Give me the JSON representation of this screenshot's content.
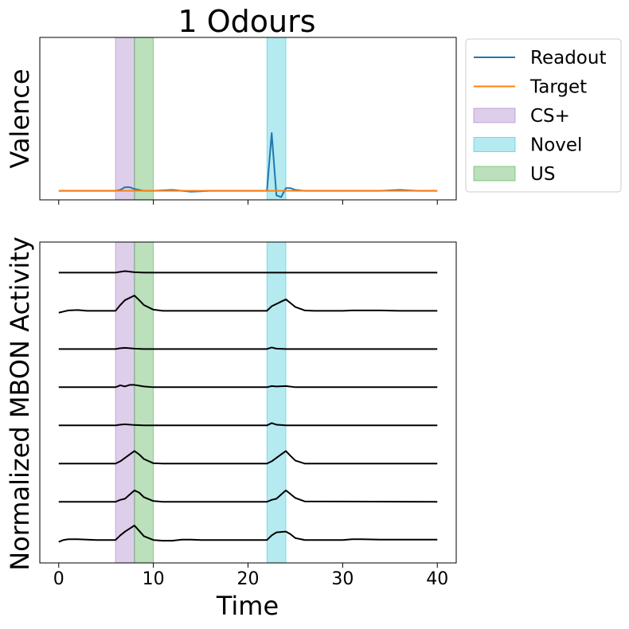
{
  "chart_data": [
    {
      "type": "line",
      "title": "1 Odours",
      "xlabel": "",
      "ylabel": "Valence",
      "xlim": [
        -2,
        42
      ],
      "ylim": [
        -0.1,
        1.7
      ],
      "yticks_visible": false,
      "xtick_labels_visible": false,
      "grid": false,
      "shaded_regions": [
        {
          "name": "CS+",
          "x": [
            6,
            8
          ],
          "color": "#9467bd"
        },
        {
          "name": "US",
          "x": [
            8,
            10
          ],
          "color": "#2ca02c"
        },
        {
          "name": "Novel",
          "x": [
            22,
            24
          ],
          "color": "#17becf"
        }
      ],
      "series": [
        {
          "name": "Readout",
          "color": "#1f77b4",
          "x": [
            0,
            2,
            4,
            6,
            6.5,
            7,
            7.5,
            8,
            9,
            10,
            12,
            14,
            16,
            18,
            20,
            22,
            22.5,
            23,
            23.5,
            24,
            24.5,
            25,
            26,
            28,
            30,
            32,
            34,
            36,
            38,
            40
          ],
          "values": [
            0,
            0,
            0,
            0,
            0.01,
            0.04,
            0.04,
            0.02,
            0.0,
            0.0,
            0.01,
            -0.01,
            0.0,
            0.0,
            0.0,
            0.0,
            0.64,
            -0.05,
            -0.07,
            0.03,
            0.03,
            0.01,
            0.0,
            0.0,
            0.0,
            0.0,
            0.0,
            0.01,
            0.0,
            0.0
          ]
        },
        {
          "name": "Target",
          "color": "#ff7f0e",
          "x": [
            0,
            40
          ],
          "values": [
            0,
            0
          ]
        }
      ]
    },
    {
      "type": "line",
      "xlabel": "Time",
      "ylabel": "Normalized MBON Activity",
      "xlim": [
        -2,
        42
      ],
      "ylim": [
        -0.6,
        7.8
      ],
      "xticks": [
        0,
        10,
        20,
        30,
        40
      ],
      "xtick_labels": [
        "0",
        "10",
        "20",
        "30",
        "40"
      ],
      "yticks_visible": false,
      "grid": false,
      "shaded_regions": [
        {
          "name": "CS+",
          "x": [
            6,
            8
          ],
          "color": "#9467bd"
        },
        {
          "name": "US",
          "x": [
            8,
            10
          ],
          "color": "#2ca02c"
        },
        {
          "name": "Novel",
          "x": [
            22,
            24
          ],
          "color": "#17becf"
        }
      ],
      "series": [
        {
          "color": "#000000",
          "offset": 7,
          "x": [
            0,
            6,
            6.5,
            7,
            8,
            9,
            10,
            20,
            22,
            23,
            24,
            26,
            40
          ],
          "values": [
            0,
            0,
            0.02,
            0.04,
            0.01,
            0,
            0,
            0,
            0,
            0.0,
            0,
            0,
            0
          ]
        },
        {
          "color": "#000000",
          "offset": 6,
          "x": [
            0,
            0.5,
            1,
            2,
            3,
            4,
            5,
            6,
            6.5,
            7,
            8,
            8.5,
            9,
            10,
            11,
            12,
            14,
            16,
            18,
            20,
            22,
            22.5,
            23,
            24,
            24.5,
            25,
            26,
            27,
            28,
            29,
            30,
            31,
            32,
            34,
            36,
            38,
            40
          ],
          "values": [
            -0.05,
            -0.02,
            0.01,
            0.02,
            0.0,
            0.0,
            0.0,
            0.0,
            0.15,
            0.28,
            0.4,
            0.28,
            0.15,
            0.03,
            0.0,
            0.0,
            0.0,
            0.0,
            0.0,
            0.0,
            0.0,
            0.12,
            0.18,
            0.3,
            0.2,
            0.1,
            0.01,
            0.0,
            0.0,
            0.0,
            0.0,
            0.01,
            0.01,
            0.01,
            0.0,
            0.0,
            0.0
          ]
        },
        {
          "color": "#000000",
          "offset": 5,
          "x": [
            0,
            6,
            6.5,
            7,
            8,
            9,
            10,
            20,
            22,
            22.5,
            23,
            24,
            40
          ],
          "values": [
            0,
            0,
            0.02,
            0.03,
            0.01,
            0,
            0,
            0,
            0,
            0.04,
            0.01,
            0,
            0
          ]
        },
        {
          "color": "#000000",
          "offset": 4,
          "x": [
            0,
            6,
            6.5,
            7,
            7.5,
            8,
            9,
            10,
            20,
            22,
            22.5,
            23,
            24,
            25,
            40
          ],
          "values": [
            0,
            0,
            0.05,
            0.02,
            0.06,
            0.06,
            0.02,
            0,
            0,
            0,
            0.03,
            0.02,
            0.03,
            0,
            0
          ]
        },
        {
          "color": "#000000",
          "offset": 3,
          "x": [
            0,
            6,
            6.5,
            7,
            8,
            9,
            10,
            20,
            22,
            22.5,
            23,
            24,
            40
          ],
          "values": [
            0,
            0,
            0.02,
            0.03,
            0.01,
            0,
            0,
            0,
            0,
            0.06,
            0.02,
            0,
            0
          ]
        },
        {
          "color": "#000000",
          "offset": 2,
          "x": [
            0,
            6,
            6.5,
            7,
            8,
            8.5,
            9,
            10,
            11,
            12,
            20,
            22,
            22.5,
            23,
            24,
            24.5,
            25,
            26,
            40
          ],
          "values": [
            0,
            0,
            0.06,
            0.15,
            0.33,
            0.24,
            0.12,
            0.01,
            0.0,
            0.0,
            0,
            0,
            0.06,
            0.15,
            0.33,
            0.2,
            0.08,
            0.0,
            0
          ]
        },
        {
          "color": "#000000",
          "offset": 1,
          "x": [
            0,
            6,
            6.5,
            7,
            8,
            8.5,
            9,
            10,
            11,
            20,
            22,
            22.5,
            23,
            24,
            24.5,
            25,
            26,
            40
          ],
          "values": [
            0,
            0,
            0.05,
            0.08,
            0.3,
            0.24,
            0.12,
            0.02,
            0.0,
            0,
            0,
            0.05,
            0.08,
            0.3,
            0.2,
            0.1,
            0.01,
            0
          ]
        },
        {
          "color": "#000000",
          "offset": 0,
          "x": [
            0,
            0.5,
            1,
            2,
            3,
            4,
            5,
            6,
            6.5,
            7,
            8,
            8.5,
            9,
            10,
            11,
            12,
            13,
            14,
            15,
            16,
            18,
            20,
            22,
            22.5,
            23,
            24,
            24.5,
            25,
            26,
            28,
            29,
            30,
            31,
            32,
            34,
            36,
            38,
            40
          ],
          "values": [
            -0.05,
            0.0,
            0.02,
            0.02,
            0.01,
            0.0,
            0.0,
            0.0,
            0.12,
            0.22,
            0.38,
            0.24,
            0.1,
            0.0,
            -0.02,
            -0.02,
            0.01,
            0.01,
            0.0,
            0.0,
            0.0,
            0.0,
            0.0,
            0.12,
            0.2,
            0.22,
            0.15,
            0.05,
            0.0,
            0.0,
            0.0,
            0.0,
            0.02,
            0.02,
            0.01,
            0.01,
            0.01,
            0.01
          ]
        }
      ]
    }
  ],
  "legend": {
    "placement": "outside upper right",
    "entries": [
      {
        "label": "Readout",
        "kind": "line",
        "color": "#1f77b4"
      },
      {
        "label": "Target",
        "kind": "line",
        "color": "#ff7f0e"
      },
      {
        "label": "CS+",
        "kind": "patch",
        "color": "#9467bd"
      },
      {
        "label": "Novel",
        "kind": "patch",
        "color": "#17becf"
      },
      {
        "label": "US",
        "kind": "patch",
        "color": "#2ca02c"
      }
    ]
  }
}
